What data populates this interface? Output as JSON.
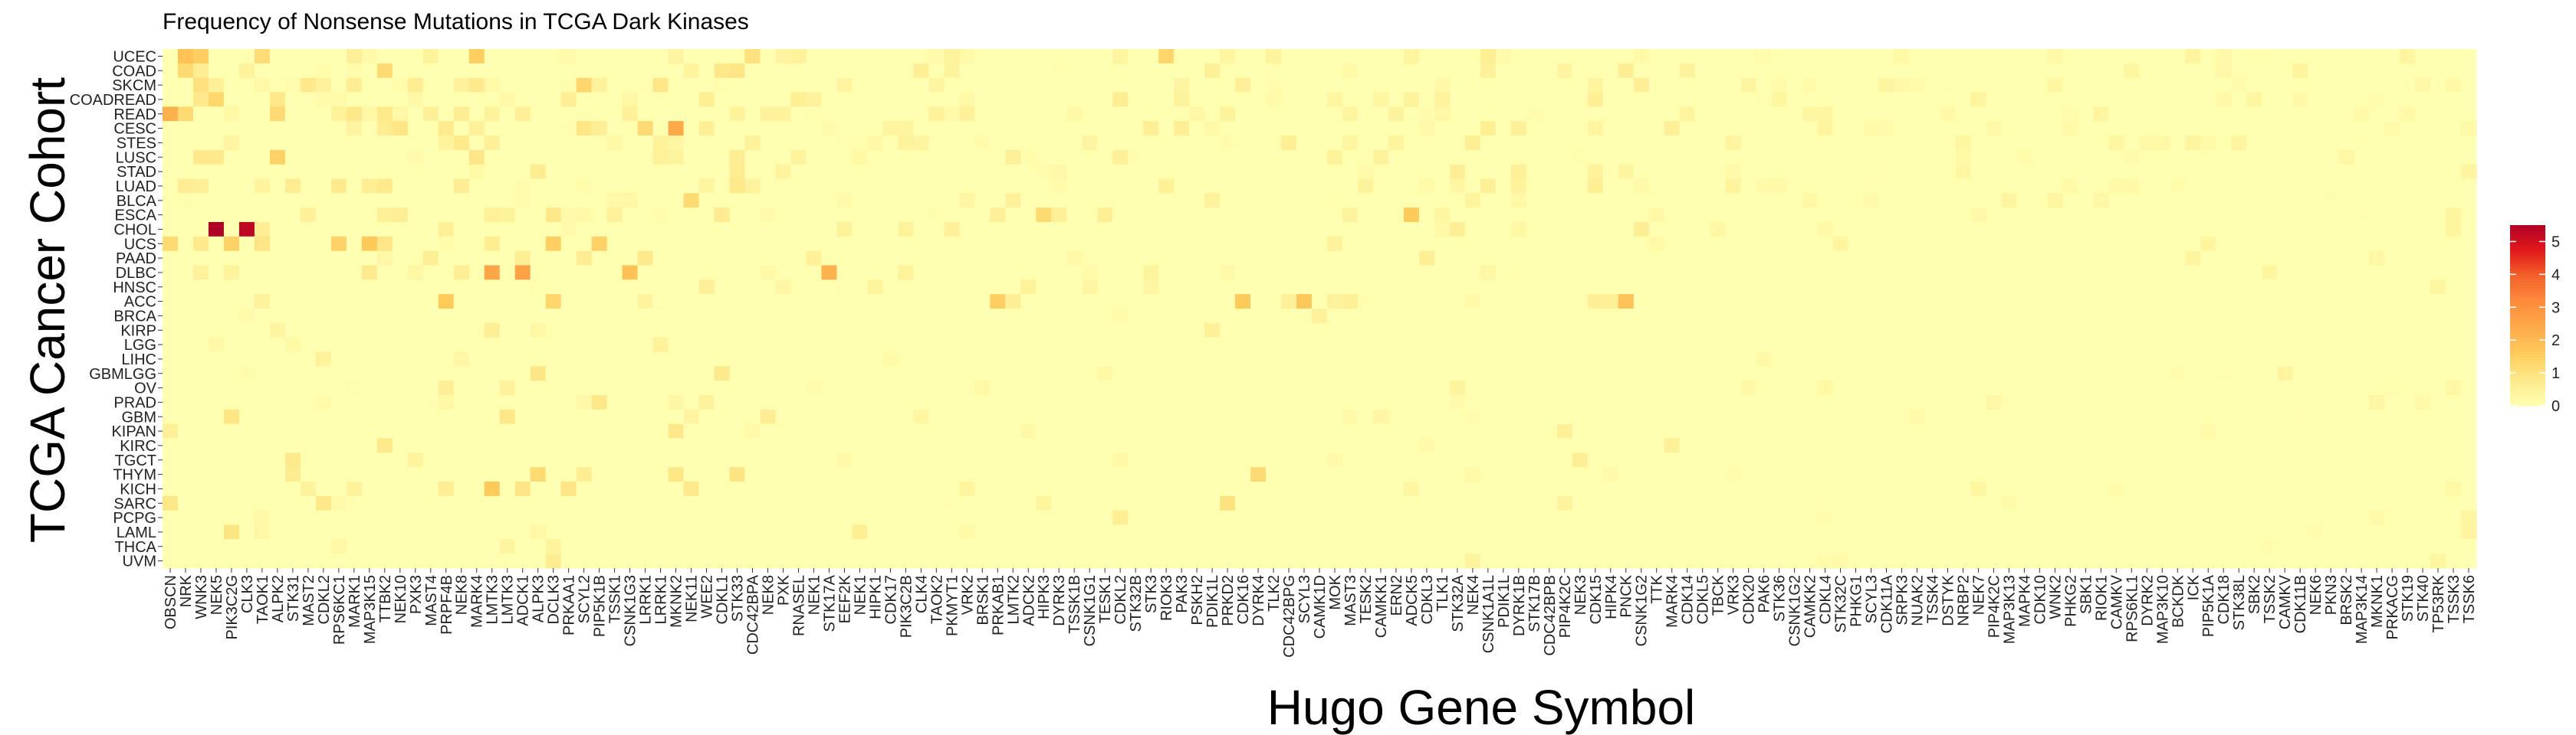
{
  "chart_data": {
    "type": "heatmap",
    "title": "Frequency of Nonsense Mutations in TCGA Dark Kinases",
    "xlabel": "Hugo Gene Symbol",
    "ylabel": "TCGA Cancer Cohort",
    "rows": [
      "UCEC",
      "COAD",
      "SKCM",
      "COADREAD",
      "READ",
      "CESC",
      "STES",
      "LUSC",
      "STAD",
      "LUAD",
      "BLCA",
      "ESCA",
      "CHOL",
      "UCS",
      "PAAD",
      "DLBC",
      "HNSC",
      "ACC",
      "BRCA",
      "KIRP",
      "LGG",
      "LIHC",
      "GBMLGG",
      "OV",
      "PRAD",
      "GBM",
      "KIPAN",
      "KIRC",
      "TGCT",
      "THYM",
      "KICH",
      "SARC",
      "PCPG",
      "LAML",
      "THCA",
      "UVM"
    ],
    "columns": [
      "OBSCN",
      "NRK",
      "WNK3",
      "NEK5",
      "PIK3C2G",
      "CLK3",
      "TAOK1",
      "ALPK2",
      "STK31",
      "MAST2",
      "CDKL2",
      "RPS6KC1",
      "MARK1",
      "MAP3K15",
      "TTBK2",
      "NEK10",
      "PXK3",
      "MAST4",
      "PRPF4B",
      "NEK8",
      "MARK4",
      "LMTK3",
      "LMTK3",
      "ADCK1",
      "ALPK3",
      "DCLK3",
      "PRKAA1",
      "SCYL2",
      "PIP5K1B",
      "TSSK1",
      "CSNK1G3",
      "LRRK1",
      "LRRK1",
      "MKNK2",
      "NEK11",
      "WEE2",
      "CDKL1",
      "STK33",
      "CDC42BPA",
      "NEK8",
      "PXK",
      "RNASEL",
      "NEK1",
      "STK17A",
      "EEF2K",
      "NEK1",
      "HIPK1",
      "CDK17",
      "PIK3C2B",
      "CLK4",
      "TAOK2",
      "PKMYT1",
      "VRK2",
      "BRSK1",
      "PRKAB1",
      "LMTK2",
      "ADCK2",
      "HIPK3",
      "DYRK3",
      "TSSK1B",
      "CSNK1G1",
      "TESK1",
      "CDKL2",
      "STK32B",
      "STK3",
      "RIOK3",
      "PAK3",
      "PSKH2",
      "PDIK1L",
      "PRKD2",
      "CDK16",
      "DYRK4",
      "TLK2",
      "CDC42BPG",
      "SCYL3",
      "CAMK1D",
      "MOK",
      "MAST3",
      "TESK2",
      "CAMKK1",
      "ERN2",
      "ADCK5",
      "CDKL3",
      "TLK1",
      "STK32A",
      "NEK4",
      "CSNK1A1L",
      "PDIK1L",
      "DYRK1B",
      "STK17B",
      "CDC42BPB",
      "PIP4K2C",
      "NEK3",
      "CDK15",
      "HIPK4",
      "PNCK",
      "CSNK1G2",
      "TTK",
      "MARK4",
      "CDK14",
      "CDKL5",
      "TBCK",
      "VRK3",
      "CDK20",
      "PAK6",
      "STK36",
      "CSNK1G2",
      "CAMKK2",
      "CDKL4",
      "STK32C",
      "PHKG1",
      "SCYL3",
      "CDK11A",
      "SRPK3",
      "NUAK2",
      "TSSK4",
      "DSTYK",
      "NRBP2",
      "NEK7",
      "PIP4K2C",
      "MAP3K13",
      "MAPK4",
      "CDK10",
      "WNK2",
      "PHKG2",
      "SBK1",
      "RIOK1",
      "CAMKV",
      "RPS6KL1",
      "DYRK2",
      "MAP3K10",
      "BCKDK",
      "ICK",
      "PIP5K1A",
      "CDK18",
      "STK38L",
      "SBK2",
      "TSSK2",
      "CAMKV",
      "CDK11B",
      "NEK6",
      "PKN3",
      "BRSK2",
      "MAP3K14",
      "MKNK1",
      "PRKACG",
      "STK19",
      "STK40",
      "TP53RK",
      "TSSK3",
      "TSSK6"
    ],
    "scale": {
      "min": 0,
      "max": 5.5,
      "ticks": [
        0,
        1,
        2,
        3,
        4,
        5
      ]
    },
    "colormap": [
      "#ffffb2",
      "#fee98b",
      "#fecc5c",
      "#fdab4a",
      "#fd8d3c",
      "#f4632b",
      "#e31a1c",
      "#b10026"
    ],
    "hotspots": [
      {
        "row": "CHOL",
        "column": "NEK5",
        "value": 5.5
      },
      {
        "row": "CHOL",
        "column": "CLK3",
        "value": 5.3
      },
      {
        "row": "UCS",
        "column": "PIK3C2G",
        "value": 1.4
      },
      {
        "row": "UCS",
        "column": "RPS6KC1",
        "value": 1.4
      },
      {
        "row": "UCS",
        "column": "MAP3K15",
        "value": 1.6
      },
      {
        "row": "UCS",
        "column": "DCLK3",
        "value": 1.5
      },
      {
        "row": "UCS",
        "column": "PIP5K1B",
        "value": 1.4
      },
      {
        "row": "UCS",
        "column": "OBSCN",
        "value": 1.2
      },
      {
        "row": "DLBC",
        "column": "ADCK1",
        "value": 2.6
      },
      {
        "row": "DLBC",
        "column": "LMTK3",
        "value": 2.5
      },
      {
        "row": "DLBC",
        "column": "CSNK1G3",
        "value": 1.8
      },
      {
        "row": "DLBC",
        "column": "STK17A",
        "value": 2.2
      },
      {
        "row": "READ",
        "column": "OBSCN",
        "value": 2.2
      },
      {
        "row": "READ",
        "column": "NRK",
        "value": 1.2
      },
      {
        "row": "READ",
        "column": "ALPK2",
        "value": 1.2
      },
      {
        "row": "CESC",
        "column": "MKNK2",
        "value": 2.4
      },
      {
        "row": "CESC",
        "column": "LRRK1",
        "value": 1.2
      },
      {
        "row": "UCEC",
        "column": "NRK",
        "value": 1.8
      },
      {
        "row": "UCEC",
        "column": "WNK3",
        "value": 1.5
      },
      {
        "row": "UCEC",
        "column": "MARK4",
        "value": 1.5
      },
      {
        "row": "UCEC",
        "column": "TAOK1",
        "value": 1.1
      },
      {
        "row": "UCEC",
        "column": "RIOK3",
        "value": 1.3
      },
      {
        "row": "UCEC",
        "column": "CDC42BPA",
        "value": 1.0
      },
      {
        "row": "COAD",
        "column": "NRK",
        "value": 1.2
      },
      {
        "row": "COAD",
        "column": "TTBK2",
        "value": 1.2
      },
      {
        "row": "SKCM",
        "column": "WNK3",
        "value": 1.0
      },
      {
        "row": "SKCM",
        "column": "SCYL2",
        "value": 1.3
      },
      {
        "row": "COADREAD",
        "column": "NEK5",
        "value": 1.3
      },
      {
        "row": "LUSC",
        "column": "ALPK2",
        "value": 1.4
      },
      {
        "row": "BLCA",
        "column": "NEK11",
        "value": 1.2
      },
      {
        "row": "ESCA",
        "column": "ADCK5",
        "value": 1.6
      },
      {
        "row": "ESCA",
        "column": "HIPK3",
        "value": 1.2
      },
      {
        "row": "ACC",
        "column": "PRPF4B",
        "value": 1.6
      },
      {
        "row": "ACC",
        "column": "PRKAB1",
        "value": 1.5
      },
      {
        "row": "ACC",
        "column": "CDK16",
        "value": 1.6
      },
      {
        "row": "ACC",
        "column": "SCYL3",
        "value": 1.7
      },
      {
        "row": "ACC",
        "column": "PNCK",
        "value": 1.8
      },
      {
        "row": "ACC",
        "column": "DCLK3",
        "value": 1.3
      },
      {
        "row": "THYM",
        "column": "ALPK3",
        "value": 1.2
      },
      {
        "row": "THYM",
        "column": "DYRK4",
        "value": 1.2
      },
      {
        "row": "KICH",
        "column": "LMTK3",
        "value": 1.6
      },
      {
        "row": "SARC",
        "column": "PRKD2",
        "value": 1.0
      }
    ]
  }
}
